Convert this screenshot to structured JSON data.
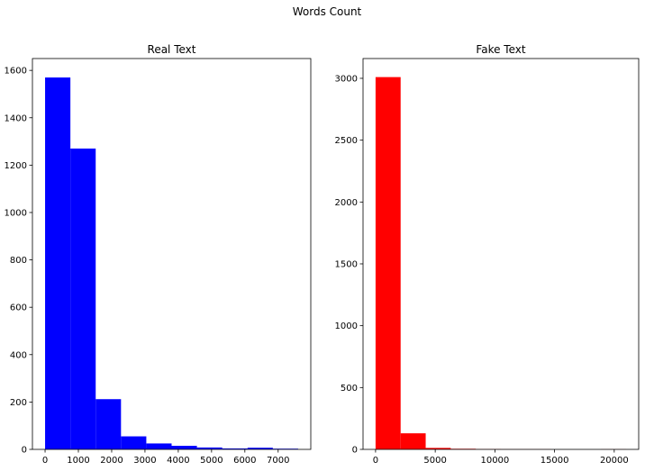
{
  "figure": {
    "suptitle": "Words Count"
  },
  "chart_data": [
    {
      "type": "bar",
      "title": "Real Text",
      "xlabel": "",
      "ylabel": "",
      "color": "#0000ff",
      "bin_edges": [
        0,
        760,
        1520,
        2280,
        3040,
        3800,
        4560,
        5320,
        6080,
        6840,
        7600
      ],
      "values": [
        1570,
        1270,
        212,
        55,
        25,
        15,
        8,
        4,
        7,
        3
      ],
      "xlim": [
        -380,
        7980
      ],
      "ylim": [
        0,
        1650
      ],
      "xticks": [
        0,
        1000,
        2000,
        3000,
        4000,
        5000,
        6000,
        7000
      ],
      "yticks": [
        0,
        200,
        400,
        600,
        800,
        1000,
        1200,
        1400,
        1600
      ],
      "grid": false
    },
    {
      "type": "bar",
      "title": "Fake Text",
      "xlabel": "",
      "ylabel": "",
      "color": "#ff0000",
      "bin_edges": [
        0,
        2100,
        4200,
        6300,
        8400,
        10500,
        12600,
        14700,
        16800,
        18900,
        21000
      ],
      "values": [
        3010,
        130,
        12,
        5,
        2,
        1,
        1,
        0,
        0,
        1
      ],
      "xlim": [
        -1050,
        22050
      ],
      "ylim": [
        0,
        3160
      ],
      "xticks": [
        0,
        5000,
        10000,
        15000,
        20000
      ],
      "yticks": [
        0,
        500,
        1000,
        1500,
        2000,
        2500,
        3000
      ],
      "grid": false
    }
  ]
}
